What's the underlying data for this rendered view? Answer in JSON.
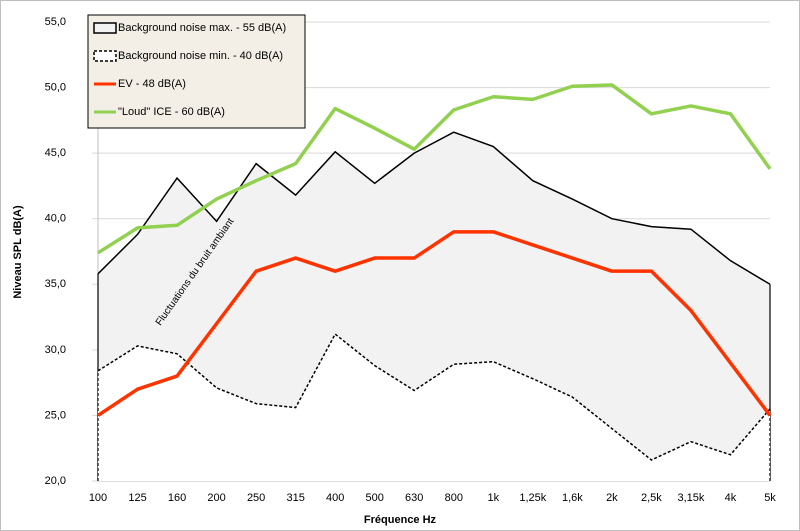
{
  "chart_data": {
    "type": "line",
    "x_label": "Fréquence Hz",
    "y_label": "Niveau SPL dB(A)",
    "annotation": "Fluctuations du bruit ambiant",
    "categories": [
      "100",
      "125",
      "160",
      "200",
      "250",
      "315",
      "400",
      "500",
      "630",
      "800",
      "1k",
      "1,25k",
      "1,6k",
      "2k",
      "2,5k",
      "3,15k",
      "4k",
      "5k"
    ],
    "series": [
      {
        "name": "Background noise max. - 55 dB(A)",
        "style": "area",
        "color": "#000000",
        "fill": "#f2f2f2",
        "dashed": false,
        "values": [
          35.8,
          38.8,
          43.1,
          39.8,
          44.2,
          41.8,
          45.1,
          42.7,
          45.0,
          46.6,
          45.5,
          42.9,
          41.5,
          40.0,
          39.4,
          39.2,
          36.8,
          35.0
        ]
      },
      {
        "name": "Background noise min. - 40 dB(A)",
        "style": "area",
        "color": "#000000",
        "fill": "#ffffff",
        "dashed": true,
        "values": [
          28.4,
          30.3,
          29.7,
          27.1,
          25.9,
          25.6,
          31.2,
          28.8,
          26.9,
          28.9,
          29.1,
          27.8,
          26.4,
          24.0,
          21.6,
          23.0,
          22.0,
          25.5
        ]
      },
      {
        "name": "EV - 48 dB(A)",
        "style": "line",
        "color": "#ff3300",
        "dashed": false,
        "values": [
          25,
          27,
          28,
          32,
          36,
          37,
          36,
          37,
          37,
          39,
          39,
          38,
          37,
          36,
          36,
          33,
          29,
          25
        ]
      },
      {
        "name": "\"Loud\" ICE - 60 dB(A)",
        "style": "line",
        "color": "#92d050",
        "dashed": false,
        "values": [
          37.4,
          39.3,
          39.5,
          41.5,
          42.9,
          44.2,
          48.4,
          46.9,
          45.3,
          48.3,
          49.3,
          49.1,
          50.1,
          50.2,
          48.0,
          48.6,
          48.0,
          43.8
        ]
      }
    ],
    "ylim": [
      20,
      55
    ],
    "yticks": [
      {
        "value": 20,
        "label": "20,0"
      },
      {
        "value": 25,
        "label": "25,0"
      },
      {
        "value": 30,
        "label": "30,0"
      },
      {
        "value": 35,
        "label": "35,0"
      },
      {
        "value": 40,
        "label": "40,0"
      },
      {
        "value": 45,
        "label": "45,0"
      },
      {
        "value": 50,
        "label": "50,0"
      },
      {
        "value": 55,
        "label": "55,0"
      }
    ],
    "grid": true,
    "legend": "upper left"
  }
}
